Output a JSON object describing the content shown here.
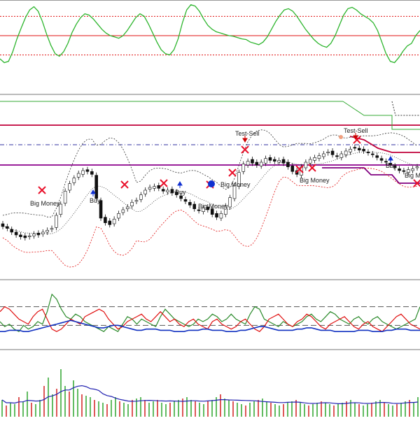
{
  "colors": {
    "oscillator": "#2db52d",
    "oscillator_mid": "#e01010",
    "oscillator_band": "#e01010",
    "price_upper": "#c0003a",
    "price_lower": "#8b008b",
    "price_dashdot": "#3030a0",
    "bollinger_outer": "#e01010",
    "bollinger_inner": "#333333",
    "trail_green": "#33aa33",
    "trail_purple": "#800080",
    "cross": "#e8102a",
    "buy_arrow": "#1030d0",
    "sell_arrow": "#cc0000",
    "dmi_plus": "#2a8a2a",
    "dmi_minus": "#e01010",
    "adx": "#1030c0",
    "volume_up": "#20a020",
    "volume_down": "#d01010",
    "volume_ma": "#2020b0"
  },
  "labels": {
    "big_money": "Big Money",
    "buy": "Buy",
    "test_sell": "Test-Sell",
    "buy_truncated": "Buy",
    "big_money_truncated": "Big Mo"
  },
  "chart_data": [
    {
      "type": "line",
      "panel": "oscillator",
      "title": "",
      "x": [
        0,
        1,
        2,
        3,
        4,
        5,
        6,
        7,
        8,
        9,
        10,
        11,
        12,
        13,
        14,
        15,
        16,
        17,
        18,
        19,
        20,
        21,
        22,
        23,
        24,
        25,
        26,
        27,
        28,
        29,
        30,
        31,
        32,
        33,
        34,
        35,
        36,
        37,
        38,
        39,
        40,
        41,
        42,
        43,
        44,
        45,
        46,
        47,
        48,
        49,
        50,
        51,
        52,
        53,
        54,
        55,
        56,
        57,
        58,
        59,
        60,
        61,
        62,
        63,
        64,
        65,
        66,
        67,
        68,
        69,
        70,
        71,
        72,
        73,
        74,
        75,
        76,
        77,
        78,
        79,
        80,
        81,
        82,
        83,
        84,
        85,
        86,
        87,
        88,
        89,
        90,
        91,
        92,
        93,
        94,
        95,
        96,
        97,
        98,
        99
      ],
      "series": [
        {
          "values": [
            14,
            8,
            10,
            25,
            45,
            62,
            78,
            90,
            95,
            88,
            72,
            52,
            35,
            22,
            18,
            25,
            38,
            55,
            68,
            78,
            84,
            82,
            76,
            68,
            60,
            54,
            50,
            48,
            46,
            50,
            58,
            68,
            78,
            84,
            80,
            68,
            54,
            40,
            28,
            22,
            20,
            28,
            45,
            70,
            90,
            98,
            96,
            88,
            76,
            66,
            60,
            56,
            54,
            52,
            50,
            49,
            47,
            45,
            44,
            40,
            38,
            36,
            40,
            48,
            60,
            72,
            82,
            90,
            92,
            88,
            80,
            70,
            60,
            52,
            44,
            38,
            34,
            32,
            38,
            50,
            66,
            82,
            92,
            94,
            90,
            84,
            80,
            76,
            70,
            58,
            40,
            22,
            10,
            8,
            16,
            26,
            34,
            38,
            50,
            58
          ]
        }
      ],
      "reference_lines": [
        80,
        50,
        20
      ],
      "ylim": [
        0,
        100
      ]
    },
    {
      "type": "line",
      "panel": "price",
      "title": "",
      "candles": {
        "close": [
          30.2,
          30.0,
          29.6,
          29.3,
          29.1,
          29.0,
          29.2,
          29.4,
          29.3,
          29.6,
          29.8,
          30.0,
          31.4,
          32.6,
          34.0,
          34.8,
          35.4,
          35.9,
          36.2,
          36.1,
          35.8,
          33.2,
          31.1,
          30.6,
          30.4,
          31.0,
          31.6,
          32.0,
          32.3,
          32.8,
          33.0,
          33.6,
          34.1,
          34.4,
          34.5,
          34.3,
          34.0,
          34.1,
          33.8,
          33.6,
          33.2,
          32.9,
          32.5,
          32.1,
          31.9,
          32.2,
          32.0,
          31.5,
          31.2,
          31.6,
          32.4,
          33.3,
          34.6,
          36.0,
          36.9,
          37.2,
          37.0,
          36.8,
          37.1,
          37.5,
          37.3,
          37.2,
          37.3,
          37.0,
          36.6,
          36.1,
          35.8,
          36.6,
          37.1,
          37.4,
          37.6,
          37.8,
          38.0,
          38.2,
          37.9,
          37.7,
          38.0,
          38.3,
          38.5,
          38.6,
          38.4,
          38.3,
          38.1,
          37.9,
          37.6,
          37.3,
          37.1,
          36.8,
          36.5,
          36.2,
          36.1,
          36.3,
          36.4,
          36.6
        ],
        "open": [
          30.5,
          30.2,
          29.9,
          29.6,
          29.3,
          29.2,
          29.1,
          29.2,
          29.5,
          29.4,
          29.6,
          29.9,
          30.1,
          31.5,
          32.7,
          34.1,
          34.9,
          35.5,
          35.8,
          36.3,
          36.1,
          35.7,
          33.0,
          31.2,
          30.8,
          30.5,
          31.1,
          31.7,
          32.1,
          32.4,
          32.9,
          33.1,
          33.7,
          34.2,
          34.3,
          34.6,
          34.2,
          33.9,
          34.2,
          33.9,
          33.5,
          33.1,
          32.8,
          32.6,
          32.0,
          31.8,
          32.3,
          32.1,
          31.6,
          31.1,
          31.5,
          32.3,
          33.2,
          34.5,
          36.1,
          36.8,
          37.4,
          37.1,
          36.7,
          37.0,
          37.6,
          37.4,
          37.1,
          37.4,
          37.1,
          36.7,
          36.2,
          35.7,
          36.5,
          37.0,
          37.3,
          37.5,
          37.7,
          38.1,
          38.3,
          37.8,
          37.6,
          37.9,
          38.2,
          38.7,
          38.6,
          38.5,
          38.2,
          38.0,
          37.8,
          37.5,
          37.2,
          37.0,
          36.7,
          36.4,
          36.2,
          36.0,
          36.2,
          36.5
        ]
      },
      "series": [],
      "ylim": [
        26,
        44
      ]
    },
    {
      "type": "line",
      "panel": "dmi",
      "title": "",
      "x": [
        0,
        1,
        2,
        3,
        4,
        5,
        6,
        7,
        8,
        9,
        10,
        11,
        12,
        13,
        14,
        15,
        16,
        17,
        18,
        19,
        20,
        21,
        22,
        23,
        24,
        25,
        26,
        27,
        28,
        29,
        30,
        31,
        32,
        33,
        34,
        35,
        36,
        37,
        38,
        39,
        40,
        41,
        42,
        43,
        44,
        45,
        46,
        47,
        48,
        49,
        50,
        51,
        52,
        53,
        54,
        55,
        56,
        57,
        58,
        59,
        60,
        61,
        62,
        63,
        64,
        65,
        66,
        67,
        68,
        69,
        70,
        71,
        72,
        73,
        74,
        75,
        76,
        77,
        78,
        79,
        80,
        81,
        82,
        83,
        84,
        85,
        86,
        87,
        88,
        89
      ],
      "series": [
        {
          "values": [
            18,
            14,
            16,
            12,
            10,
            15,
            12,
            14,
            18,
            16,
            26,
            40,
            36,
            28,
            22,
            20,
            24,
            22,
            18,
            16,
            14,
            12,
            10,
            14,
            12,
            10,
            16,
            22,
            20,
            16,
            20,
            18,
            16,
            14,
            22,
            28,
            24,
            20,
            18,
            16,
            14,
            16,
            20,
            18,
            20,
            24,
            22,
            18,
            20,
            24,
            20,
            18,
            16,
            24,
            30,
            28,
            20,
            18,
            16,
            14,
            18,
            16,
            14,
            16,
            18,
            22,
            24,
            20,
            18,
            22,
            26,
            24,
            20,
            18,
            16,
            20,
            22,
            18,
            16,
            20,
            22,
            18,
            16,
            14,
            12,
            14,
            16,
            18,
            20,
            30
          ]
        },
        {
          "values": [
            26,
            30,
            28,
            24,
            20,
            18,
            16,
            22,
            26,
            28,
            20,
            12,
            10,
            12,
            16,
            20,
            18,
            16,
            22,
            24,
            26,
            28,
            26,
            20,
            16,
            12,
            14,
            18,
            20,
            22,
            24,
            20,
            18,
            22,
            26,
            22,
            18,
            20,
            16,
            14,
            18,
            20,
            16,
            14,
            12,
            18,
            20,
            16,
            14,
            12,
            14,
            18,
            20,
            16,
            12,
            10,
            14,
            20,
            22,
            24,
            20,
            16,
            14,
            18,
            20,
            24,
            22,
            18,
            14,
            12,
            16,
            18,
            20,
            22,
            18,
            14,
            12,
            16,
            18,
            14,
            12,
            10,
            14,
            18,
            22,
            24,
            20,
            16,
            14,
            12
          ]
        },
        {
          "values": [
            10,
            10,
            11,
            11,
            11,
            10,
            10,
            11,
            12,
            13,
            14,
            15,
            16,
            17,
            18,
            19,
            18,
            17,
            16,
            15,
            14,
            13,
            13,
            14,
            15,
            15,
            14,
            13,
            12,
            11,
            11,
            12,
            12,
            12,
            11,
            11,
            11,
            10,
            10,
            10,
            11,
            11,
            11,
            12,
            12,
            11,
            11,
            11,
            10,
            10,
            10,
            11,
            11,
            12,
            13,
            14,
            14,
            13,
            12,
            11,
            11,
            11,
            11,
            12,
            12,
            13,
            13,
            12,
            11,
            11,
            11,
            10,
            10,
            10,
            10,
            10,
            11,
            11,
            11,
            10,
            10,
            10,
            11,
            11,
            12,
            12,
            12,
            11,
            11,
            11
          ]
        }
      ],
      "reference_lines": [
        30,
        15
      ],
      "ylim": [
        0,
        45
      ]
    },
    {
      "type": "bar",
      "panel": "volume",
      "title": "",
      "values": [
        12,
        8,
        10,
        9,
        14,
        11,
        18,
        10,
        9,
        12,
        22,
        28,
        16,
        20,
        34,
        22,
        18,
        26,
        20,
        16,
        15,
        14,
        12,
        11,
        10,
        9,
        12,
        14,
        11,
        10,
        9,
        12,
        13,
        14,
        12,
        10,
        11,
        12,
        10,
        9,
        10,
        11,
        12,
        13,
        14,
        12,
        11,
        10,
        9,
        11,
        12,
        14,
        16,
        13,
        12,
        11,
        10,
        9,
        8,
        10,
        11,
        12,
        13,
        11,
        10,
        9,
        8,
        9,
        10,
        11,
        12,
        10,
        9,
        8,
        9,
        10,
        11,
        10,
        9,
        8,
        9,
        10,
        11,
        12,
        10,
        9,
        8,
        9,
        10,
        11,
        12,
        10,
        9,
        8,
        9,
        10,
        11,
        12,
        10,
        14
      ],
      "series": [],
      "ylim": [
        0,
        40
      ]
    }
  ]
}
